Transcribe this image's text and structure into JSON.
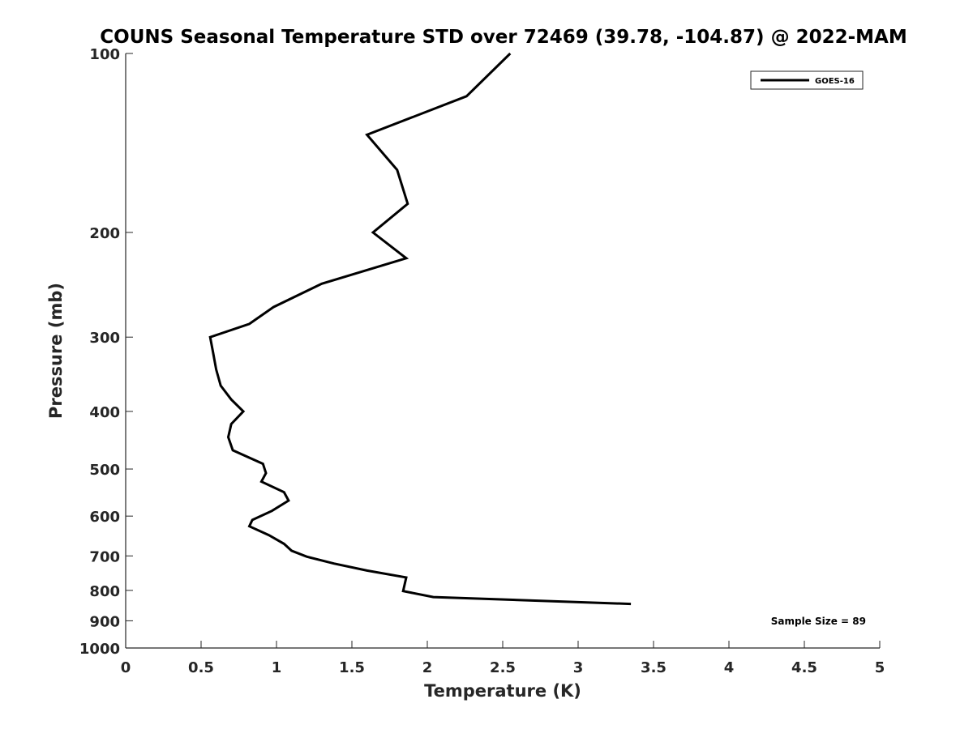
{
  "chart_data": {
    "type": "line",
    "title": "COUNS Seasonal Temperature STD over 72469 (39.78, -104.87) @ 2022-MAM",
    "xlabel": "Temperature (K)",
    "ylabel": "Pressure (mb)",
    "xlim": [
      0,
      5
    ],
    "ylim": [
      1000,
      100
    ],
    "y_scale": "log",
    "y_reversed": true,
    "x_ticks": [
      "0",
      "0.5",
      "1",
      "1.5",
      "2",
      "2.5",
      "3",
      "3.5",
      "4",
      "4.5",
      "5"
    ],
    "y_ticks": [
      "100",
      "200",
      "300",
      "400",
      "500",
      "600",
      "700",
      "800",
      "900",
      "1000"
    ],
    "grid": false,
    "legend_position": "top-right",
    "annotation": "Sample Size = 89",
    "series": [
      {
        "name": "GOES-16",
        "color": "#000000",
        "points": [
          {
            "x": 2.55,
            "y": 100
          },
          {
            "x": 2.26,
            "y": 118
          },
          {
            "x": 1.6,
            "y": 137
          },
          {
            "x": 1.8,
            "y": 157
          },
          {
            "x": 1.87,
            "y": 179
          },
          {
            "x": 1.64,
            "y": 200
          },
          {
            "x": 1.86,
            "y": 221
          },
          {
            "x": 1.3,
            "y": 244
          },
          {
            "x": 0.98,
            "y": 267
          },
          {
            "x": 0.82,
            "y": 285
          },
          {
            "x": 0.56,
            "y": 300
          },
          {
            "x": 0.58,
            "y": 319
          },
          {
            "x": 0.6,
            "y": 340
          },
          {
            "x": 0.63,
            "y": 362
          },
          {
            "x": 0.7,
            "y": 382
          },
          {
            "x": 0.78,
            "y": 400
          },
          {
            "x": 0.7,
            "y": 420
          },
          {
            "x": 0.68,
            "y": 442
          },
          {
            "x": 0.71,
            "y": 465
          },
          {
            "x": 0.91,
            "y": 490
          },
          {
            "x": 0.93,
            "y": 508
          },
          {
            "x": 0.9,
            "y": 525
          },
          {
            "x": 1.05,
            "y": 547
          },
          {
            "x": 1.08,
            "y": 565
          },
          {
            "x": 0.97,
            "y": 588
          },
          {
            "x": 0.84,
            "y": 609
          },
          {
            "x": 0.82,
            "y": 624
          },
          {
            "x": 0.95,
            "y": 646
          },
          {
            "x": 1.05,
            "y": 668
          },
          {
            "x": 1.1,
            "y": 686
          },
          {
            "x": 1.2,
            "y": 702
          },
          {
            "x": 1.38,
            "y": 721
          },
          {
            "x": 1.6,
            "y": 741
          },
          {
            "x": 1.86,
            "y": 761
          },
          {
            "x": 1.84,
            "y": 802
          },
          {
            "x": 2.04,
            "y": 821
          },
          {
            "x": 3.35,
            "y": 843
          }
        ]
      }
    ]
  }
}
